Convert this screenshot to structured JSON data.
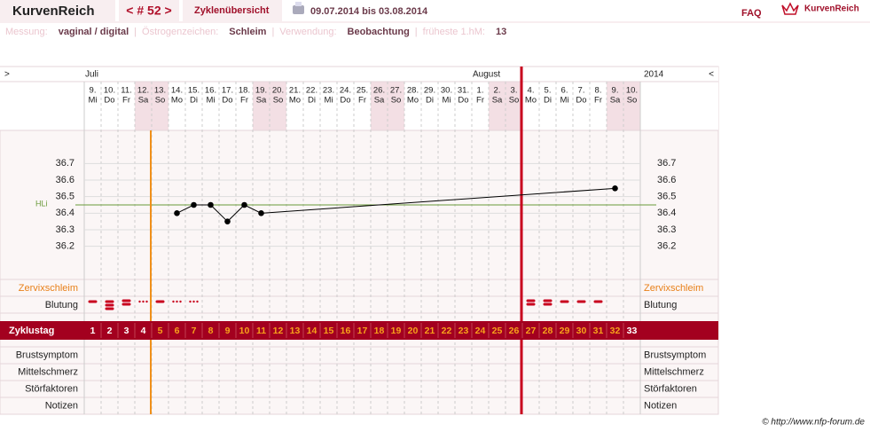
{
  "header": {
    "logo": "KurvenReich",
    "cycle": "< # 52 >",
    "overview": "Zyklenübersicht",
    "range": "09.07.2014 bis 03.08.2014",
    "faq": "FAQ",
    "brand": "KurvenReich"
  },
  "settings": {
    "separator": "|",
    "items": [
      {
        "label": "Messung:",
        "value": "vaginal / digital"
      },
      {
        "label": "Östrogenzeichen:",
        "value": "Schleim"
      },
      {
        "label": "Verwendung:",
        "value": "Beobachtung"
      },
      {
        "label": "früheste 1.hM:",
        "value": "13"
      }
    ]
  },
  "chart": {
    "nav_left": ">",
    "nav_right": "<",
    "year": "2014",
    "months": [
      {
        "label": "Juli",
        "day": 0
      },
      {
        "label": "August",
        "day": 23
      }
    ],
    "days": [
      {
        "d": "9.",
        "w": "Mi"
      },
      {
        "d": "10.",
        "w": "Do"
      },
      {
        "d": "11.",
        "w": "Fr"
      },
      {
        "d": "12.",
        "w": "Sa"
      },
      {
        "d": "13.",
        "w": "So"
      },
      {
        "d": "14.",
        "w": "Mo"
      },
      {
        "d": "15.",
        "w": "Di"
      },
      {
        "d": "16.",
        "w": "Mi"
      },
      {
        "d": "17.",
        "w": "Do"
      },
      {
        "d": "18.",
        "w": "Fr"
      },
      {
        "d": "19.",
        "w": "Sa"
      },
      {
        "d": "20.",
        "w": "So"
      },
      {
        "d": "21.",
        "w": "Mo"
      },
      {
        "d": "22.",
        "w": "Di"
      },
      {
        "d": "23.",
        "w": "Mi"
      },
      {
        "d": "24.",
        "w": "Do"
      },
      {
        "d": "25.",
        "w": "Fr"
      },
      {
        "d": "26.",
        "w": "Sa"
      },
      {
        "d": "27.",
        "w": "So"
      },
      {
        "d": "28.",
        "w": "Mo"
      },
      {
        "d": "29.",
        "w": "Di"
      },
      {
        "d": "30.",
        "w": "Mi"
      },
      {
        "d": "31.",
        "w": "Do"
      },
      {
        "d": "1.",
        "w": "Fr"
      },
      {
        "d": "2.",
        "w": "Sa"
      },
      {
        "d": "3.",
        "w": "So"
      },
      {
        "d": "4.",
        "w": "Mo"
      },
      {
        "d": "5.",
        "w": "Di"
      },
      {
        "d": "6.",
        "w": "Mi"
      },
      {
        "d": "7.",
        "w": "Do"
      },
      {
        "d": "8.",
        "w": "Fr"
      },
      {
        "d": "9.",
        "w": "Sa"
      },
      {
        "d": "10.",
        "w": "So"
      }
    ],
    "ylim": [
      36.0,
      36.9
    ],
    "yticks": [
      36.7,
      36.6,
      36.5,
      36.4,
      36.3,
      36.2
    ],
    "hli": {
      "label": "HLi",
      "value": 36.45
    },
    "temperatures": [
      null,
      null,
      null,
      null,
      null,
      36.4,
      36.45,
      36.45,
      36.35,
      36.45,
      36.4,
      null,
      null,
      null,
      null,
      null,
      null,
      null,
      null,
      null,
      null,
      null,
      null,
      null,
      null,
      null,
      null,
      null,
      null,
      null,
      null,
      36.55,
      null
    ],
    "upper_rows": [
      "Zervixschleim",
      "Blutung"
    ],
    "cycle_label": "Zyklustag",
    "cycle_days": [
      1,
      2,
      3,
      4,
      5,
      6,
      7,
      8,
      9,
      10,
      11,
      12,
      13,
      14,
      15,
      16,
      17,
      18,
      19,
      20,
      21,
      22,
      23,
      24,
      25,
      26,
      27,
      28,
      29,
      30,
      31,
      32,
      33
    ],
    "lower_rows": [
      "Brustsymptom",
      "Mittelschmerz",
      "Störfaktoren",
      "Notizen"
    ]
  },
  "copyright": "© http://www.nfp-forum.de"
}
